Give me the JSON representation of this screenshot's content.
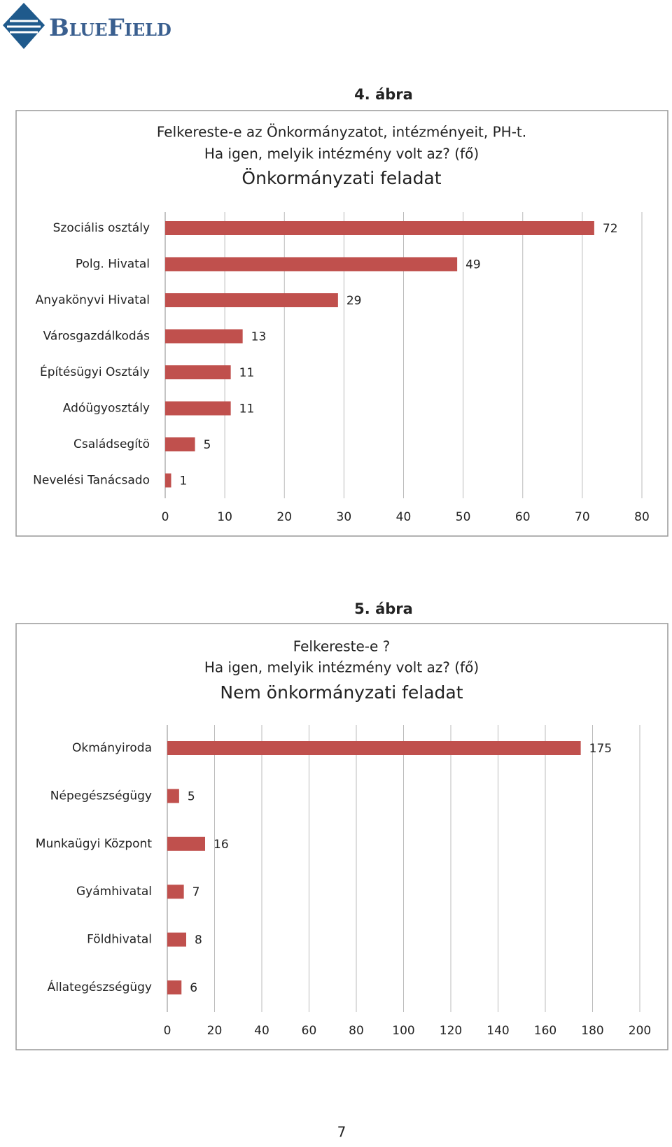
{
  "logo": "BlueField",
  "page_number": "7",
  "chart_data": [
    {
      "type": "bar",
      "orientation": "horizontal",
      "figure_label": "4.  ábra",
      "title": [
        "Felkereste-e  az Önkormányzatot, intézményeit, PH-t.",
        "Ha igen, melyik intézmény volt az? (fő)"
      ],
      "subtitle": "Önkormányzati feladat",
      "categories": [
        "Szociális osztály",
        "Polg. Hivatal",
        "Anyakönyvi Hivatal",
        "Városgazdálkodás",
        "Építésügyi Osztály",
        "Adóügyosztály",
        "Családsegítö",
        "Nevelési Tanácsado"
      ],
      "values": [
        72,
        49,
        29,
        13,
        11,
        11,
        5,
        1
      ],
      "color": "#c0504d",
      "xlim": [
        0,
        80
      ],
      "xticks": [
        0,
        10,
        20,
        30,
        40,
        50,
        60,
        70,
        80
      ],
      "grid": true
    },
    {
      "type": "bar",
      "orientation": "horizontal",
      "figure_label": "5.  ábra",
      "title": [
        "Felkereste-e ?",
        "Ha igen, melyik intézmény volt az? (fő)"
      ],
      "subtitle": "Nem önkormányzati feladat",
      "categories": [
        "Okmányiroda",
        "Népegészségügy",
        "Munkaügyi Központ",
        "Gyámhivatal",
        "Földhivatal",
        "Állategészségügy"
      ],
      "values": [
        175,
        5,
        16,
        7,
        8,
        6
      ],
      "color": "#c0504d",
      "xlim": [
        0,
        200
      ],
      "xticks": [
        0,
        20,
        40,
        60,
        80,
        100,
        120,
        140,
        160,
        180,
        200
      ],
      "grid": true
    }
  ]
}
